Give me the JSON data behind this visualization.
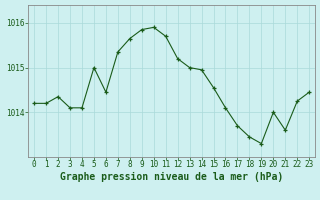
{
  "x": [
    0,
    1,
    2,
    3,
    4,
    5,
    6,
    7,
    8,
    9,
    10,
    11,
    12,
    13,
    14,
    15,
    16,
    17,
    18,
    19,
    20,
    21,
    22,
    23
  ],
  "y": [
    1014.2,
    1014.2,
    1014.35,
    1014.1,
    1014.1,
    1015.0,
    1014.45,
    1015.35,
    1015.65,
    1015.85,
    1015.9,
    1015.7,
    1015.2,
    1015.0,
    1014.95,
    1014.55,
    1014.1,
    1013.7,
    1013.45,
    1013.3,
    1014.0,
    1013.6,
    1014.25,
    1014.45
  ],
  "ylim": [
    1013.0,
    1016.4
  ],
  "yticks": [
    1014,
    1015,
    1016
  ],
  "xticks": [
    0,
    1,
    2,
    3,
    4,
    5,
    6,
    7,
    8,
    9,
    10,
    11,
    12,
    13,
    14,
    15,
    16,
    17,
    18,
    19,
    20,
    21,
    22,
    23
  ],
  "line_color": "#1a5c1a",
  "marker": "+",
  "marker_color": "#1a5c1a",
  "bg_color": "#cef0f0",
  "grid_color": "#aadada",
  "axes_color": "#888888",
  "xlabel": "Graphe pression niveau de la mer (hPa)",
  "xlabel_color": "#1a5c1a",
  "tick_label_color": "#1a5c1a",
  "tick_fontsize": 5.5,
  "xlabel_fontsize": 7.0,
  "figure_bg": "#cef0f0"
}
